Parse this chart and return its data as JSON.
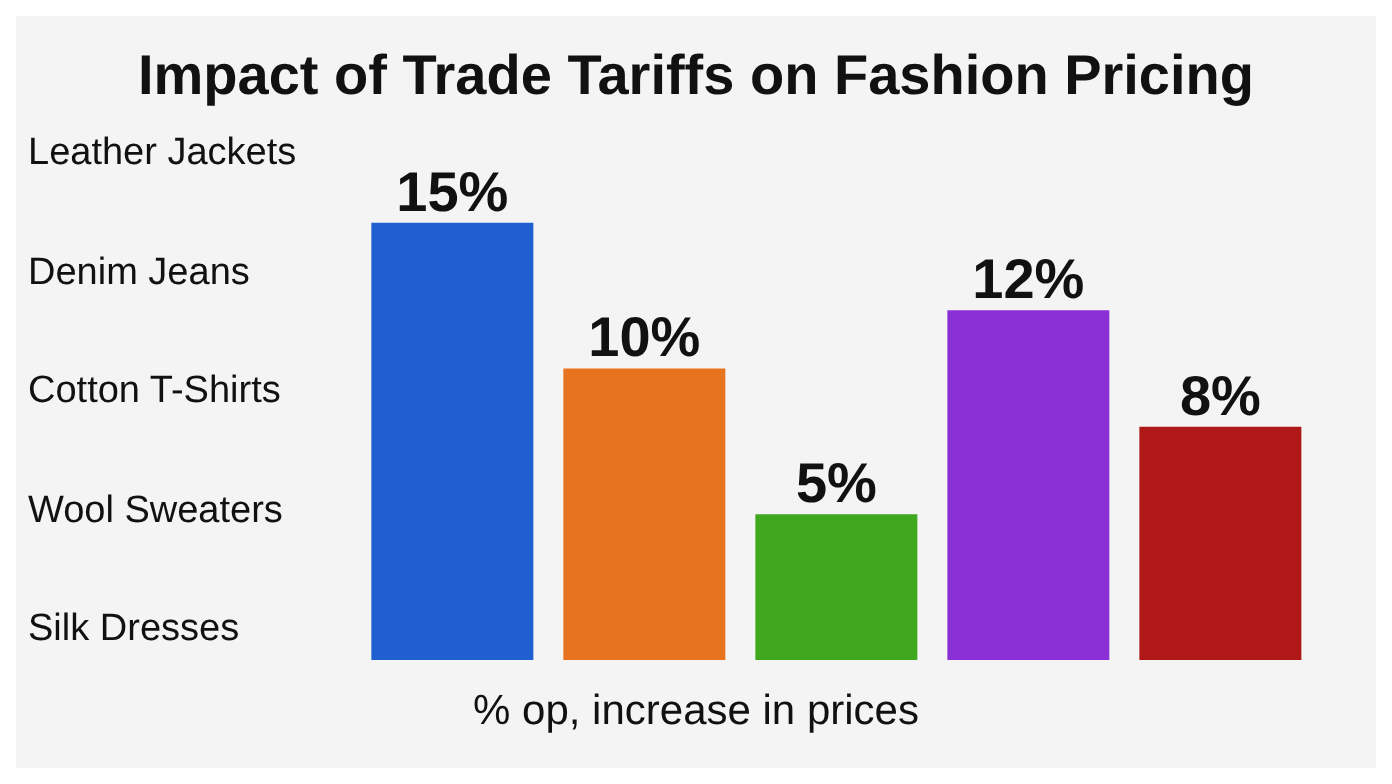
{
  "chart_data": {
    "type": "bar",
    "title": "Impact of Trade Tariffs on Fashion Pricing",
    "xlabel": "% op, increase in prices",
    "categories": [
      null,
      null,
      null,
      null,
      null
    ],
    "values": [
      15,
      10,
      5,
      12,
      8
    ],
    "colors": [
      "#1f5fd0",
      "#e8731f",
      "#3fa81e",
      "#8b2fd6",
      "#b01818"
    ],
    "data_labels": true,
    "value_labels": [
      "15%",
      "10%",
      "5%",
      "12%",
      "8%"
    ],
    "annotations": [
      "Leather Jackets",
      "Denim Jeans",
      "Cotton T-Shirts",
      "Wool Sweaters",
      "Silk Dresses"
    ]
  }
}
